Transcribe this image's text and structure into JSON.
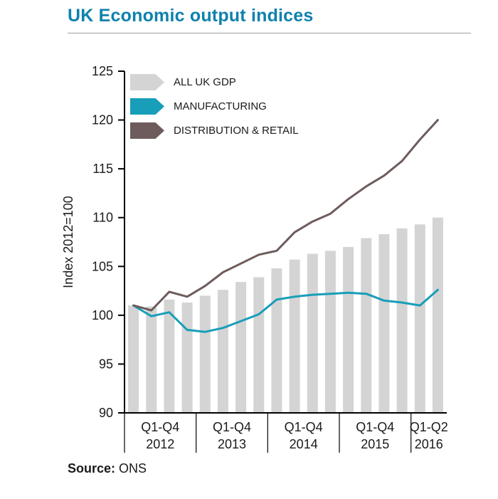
{
  "title": "UK Economic output indices",
  "source": {
    "label": "Source:",
    "value": "ONS"
  },
  "colors": {
    "title_accent": "#0e81ad",
    "axis": "#000000",
    "text": "#1a1a1a",
    "bar": "#d4d4d4",
    "manufacturing_line": "#189eb8",
    "distribution_retail_line": "#6e5c5c"
  },
  "chart_data": {
    "type": "bar",
    "title": "UK Economic output indices",
    "ylabel": "Index 2012=100",
    "ylim": [
      90,
      125
    ],
    "ytick_step": 5,
    "grid": false,
    "legend_position": "top-left",
    "x_groups": [
      {
        "label": "Q1-Q4",
        "year": "2012",
        "quarters": 4
      },
      {
        "label": "Q1-Q4",
        "year": "2013",
        "quarters": 4
      },
      {
        "label": "Q1-Q4",
        "year": "2014",
        "quarters": 4
      },
      {
        "label": "Q1-Q4",
        "year": "2015",
        "quarters": 4
      },
      {
        "label": "Q1-Q2",
        "year": "2016",
        "quarters": 2
      }
    ],
    "series": [
      {
        "name": "ALL UK GDP",
        "type": "bar",
        "color": "#d4d4d4",
        "values": [
          101.0,
          100.9,
          101.6,
          101.3,
          102.0,
          102.6,
          103.4,
          103.9,
          104.8,
          105.7,
          106.3,
          106.6,
          107.0,
          107.9,
          108.3,
          108.9,
          109.3,
          110.0
        ]
      },
      {
        "name": "MANUFACTURING",
        "type": "line",
        "color": "#189eb8",
        "values": [
          101.0,
          99.9,
          100.3,
          98.5,
          98.3,
          98.7,
          99.4,
          100.1,
          101.6,
          101.9,
          102.1,
          102.2,
          102.3,
          102.2,
          101.5,
          101.3,
          101.0,
          102.6
        ]
      },
      {
        "name": "DISTRIBUTION & RETAIL",
        "type": "line",
        "color": "#6e5c5c",
        "values": [
          101.0,
          100.5,
          102.4,
          101.9,
          103.0,
          104.4,
          105.3,
          106.2,
          106.6,
          108.5,
          109.6,
          110.4,
          111.9,
          113.2,
          114.3,
          115.8,
          118.0,
          120.0
        ]
      }
    ]
  }
}
